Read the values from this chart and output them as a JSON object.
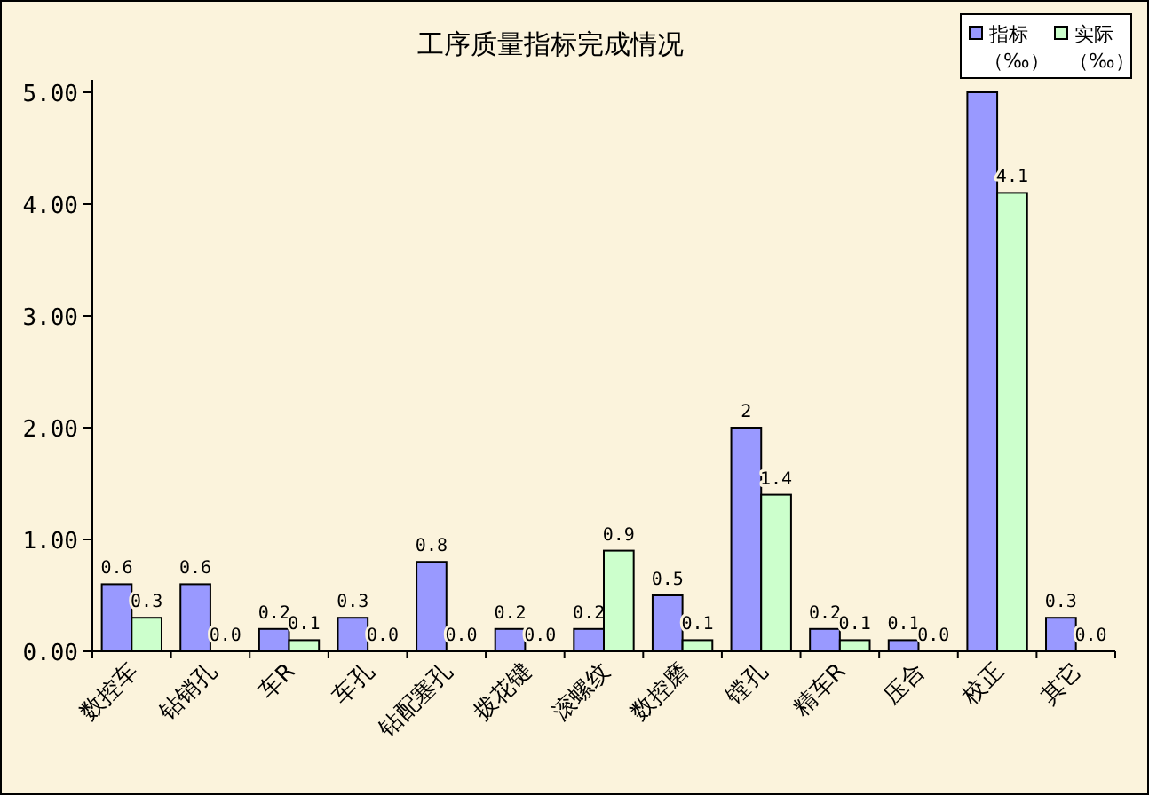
{
  "chart_data": {
    "type": "bar",
    "title": "工序质量指标完成情况",
    "categories": [
      "数控车",
      "钻销孔",
      "车R",
      "车孔",
      "钻配塞孔",
      "拨花键",
      "滚螺纹",
      "数控磨",
      "镗孔",
      "精车R",
      "压合",
      "校正",
      "其它"
    ],
    "series": [
      {
        "name": "指标（‰）",
        "color": "#9999ff",
        "values": [
          0.6,
          0.6,
          0.2,
          0.3,
          0.8,
          0.2,
          0.2,
          0.5,
          2,
          0.2,
          0.1,
          5,
          0.3
        ],
        "value_labels": [
          "0.6",
          "0.6",
          "0.2",
          "0.3",
          "0.8",
          "0.2",
          "0.2",
          "0.5",
          "2",
          "0.2",
          "0.1",
          null,
          "0.3"
        ]
      },
      {
        "name": "实际（‰）",
        "color": "#ccffcc",
        "values": [
          0.3,
          0,
          0.1,
          0,
          0,
          0,
          0.9,
          0.1,
          1.4,
          0.1,
          0,
          4.1,
          0
        ],
        "value_labels": [
          "0.3",
          "0.0",
          "0.1",
          "0.0",
          "0.0",
          "0.0",
          "0.9",
          "0.1",
          "1.4",
          "0.1",
          "0.0",
          "4.1",
          "0.0"
        ]
      }
    ],
    "ylim": [
      0,
      5
    ],
    "yticks": [
      {
        "value": 0,
        "label": "0.00"
      },
      {
        "value": 1,
        "label": "1.00"
      },
      {
        "value": 2,
        "label": "2.00"
      },
      {
        "value": 3,
        "label": "3.00"
      },
      {
        "value": 4,
        "label": "4.00"
      },
      {
        "value": 5,
        "label": "5.00"
      }
    ],
    "legend": "top right"
  }
}
